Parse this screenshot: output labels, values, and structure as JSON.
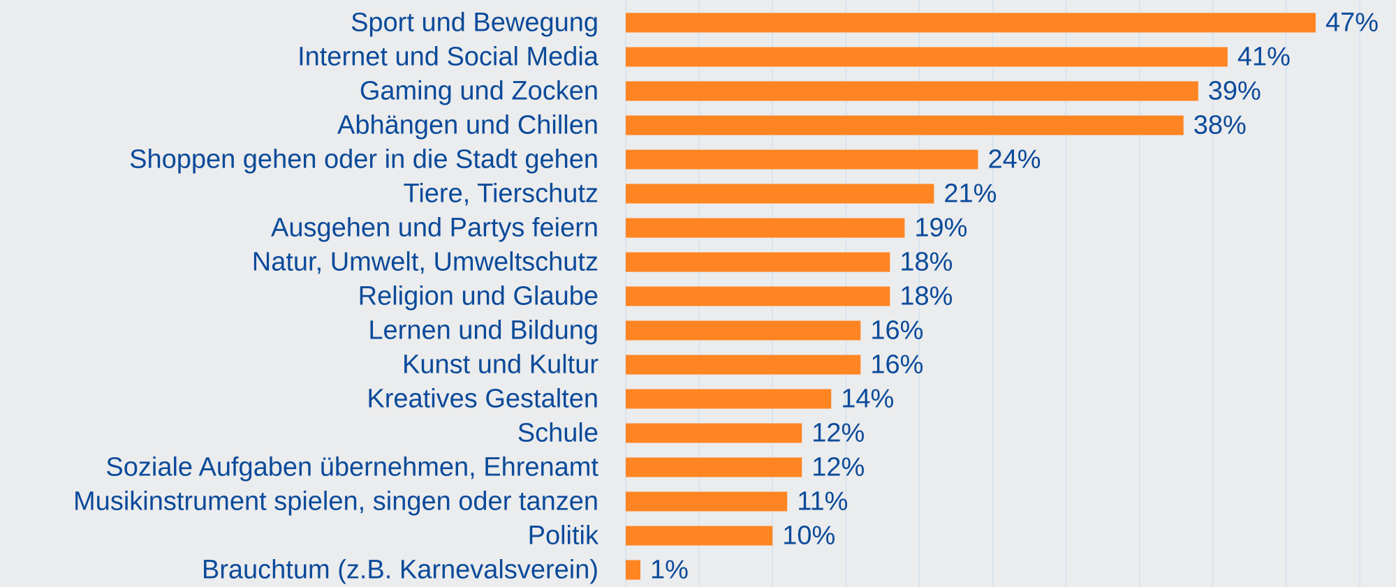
{
  "chart_data": {
    "type": "hbar",
    "categories": [
      "Sport und Bewegung",
      "Internet und Social Media",
      "Gaming und Zocken",
      "Abhängen und Chillen",
      "Shoppen gehen oder in die Stadt gehen",
      "Tiere, Tierschutz",
      "Ausgehen und Partys feiern",
      "Natur, Umwelt, Umweltschutz",
      "Religion und Glaube",
      "Lernen und Bildung",
      "Kunst und Kultur",
      "Kreatives Gestalten",
      "Schule",
      "Soziale Aufgaben übernehmen, Ehrenamt",
      "Musikinstrument spielen, singen oder tanzen",
      "Politik",
      "Brauchtum (z.B. Karnevalsverein)"
    ],
    "values": [
      47,
      41,
      39,
      38,
      24,
      21,
      19,
      18,
      18,
      16,
      16,
      14,
      12,
      12,
      11,
      10,
      1
    ],
    "value_labels": [
      "47%",
      "41%",
      "39%",
      "38%",
      "24%",
      "21%",
      "19%",
      "18%",
      "18%",
      "16%",
      "16%",
      "14%",
      "12%",
      "12%",
      "11%",
      "10%",
      "1%"
    ],
    "color": "#ff8522",
    "xlim": [
      0,
      50
    ],
    "xticks": [
      0,
      5,
      10,
      15,
      20,
      25,
      30,
      35,
      40,
      45,
      50
    ],
    "grid": true
  }
}
